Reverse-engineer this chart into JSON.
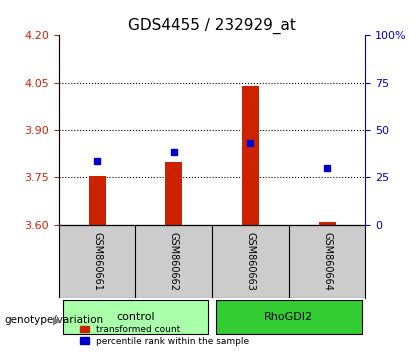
{
  "title": "GDS4455 / 232929_at",
  "samples": [
    "GSM860661",
    "GSM860662",
    "GSM860663",
    "GSM860664"
  ],
  "red_values": [
    3.753,
    3.797,
    4.038,
    3.608
  ],
  "blue_values": [
    3.8,
    3.83,
    3.86,
    3.78
  ],
  "ylim_left": [
    3.6,
    4.2
  ],
  "ylim_right": [
    0,
    100
  ],
  "left_ticks": [
    3.6,
    3.75,
    3.9,
    4.05,
    4.2
  ],
  "right_ticks": [
    0,
    25,
    50,
    75,
    100
  ],
  "right_tick_labels": [
    "0",
    "25",
    "50",
    "75",
    "100%"
  ],
  "grid_lines": [
    3.75,
    3.9,
    4.05
  ],
  "bar_bottom": 3.6,
  "red_color": "#cc2200",
  "blue_color": "#0000cc",
  "control_color": "#aaffaa",
  "rhogdi2_color": "#33cc33",
  "sample_bg_color": "#cccccc",
  "plot_bg_color": "#ffffff",
  "legend_red": "transformed count",
  "legend_blue": "percentile rank within the sample",
  "genotype_label": "genotype/variation",
  "left_axis_color": "#cc2200",
  "right_axis_color": "#0000cc"
}
